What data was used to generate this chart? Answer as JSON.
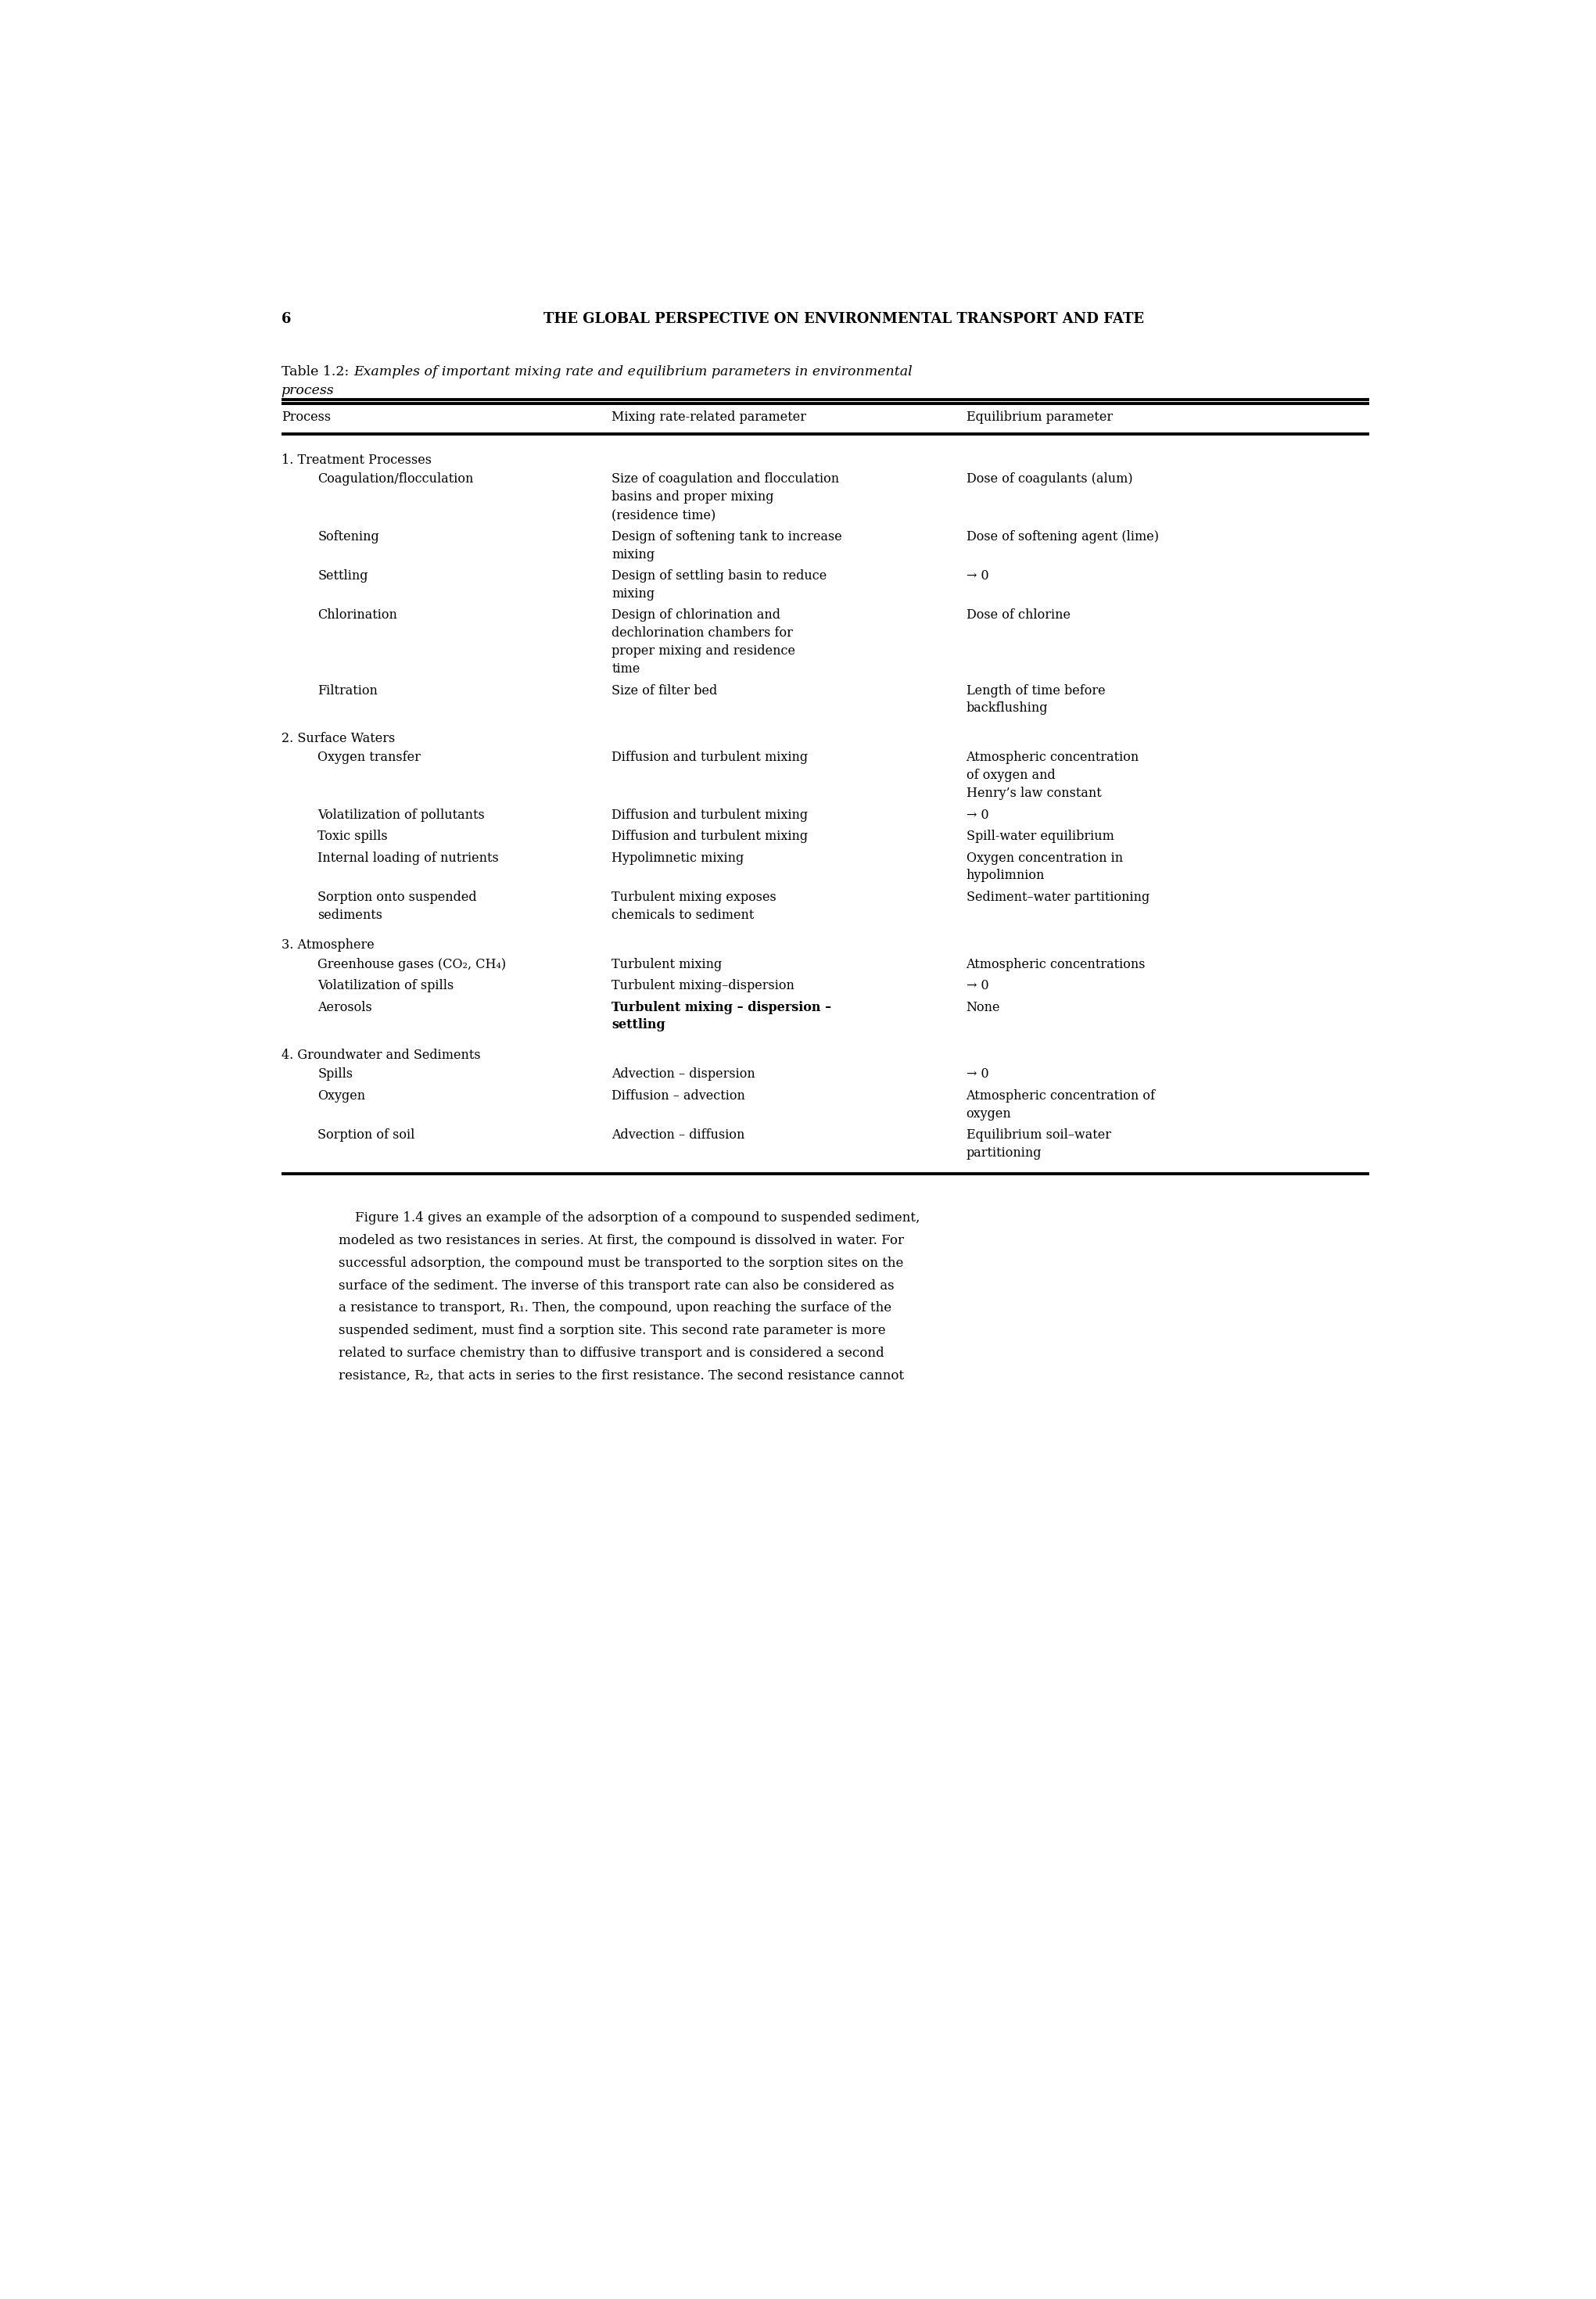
{
  "page_number": "6",
  "header": "THE GLOBAL PERSPECTIVE ON ENVIRONMENTAL TRANSPORT AND FATE",
  "table_label": "Table 1.2:",
  "table_caption_italic": "Examples of important mixing rate and equilibrium parameters in environmental\nprocess",
  "col_headers": [
    "Process",
    "Mixing rate-related parameter",
    "Equilibrium parameter"
  ],
  "rows": [
    {
      "section": true,
      "col0": "1. Treatment Processes",
      "col1": "",
      "col2": ""
    },
    {
      "section": false,
      "col0": "Coagulation/flocculation",
      "col1": "Size of coagulation and flocculation\nbasins and proper mixing\n(residence time)",
      "col2": "Dose of coagulants (alum)"
    },
    {
      "section": false,
      "col0": "Softening",
      "col1": "Design of softening tank to increase\nmixing",
      "col2": "Dose of softening agent (lime)"
    },
    {
      "section": false,
      "col0": "Settling",
      "col1": "Design of settling basin to reduce\nmixing",
      "col2": "→ 0"
    },
    {
      "section": false,
      "col0": "Chlorination",
      "col1": "Design of chlorination and\ndechlorination chambers for\nproper mixing and residence\ntime",
      "col2": "Dose of chlorine"
    },
    {
      "section": false,
      "col0": "Filtration",
      "col1": "Size of filter bed",
      "col2": "Length of time before\nbackflushing"
    },
    {
      "section": true,
      "col0": "2. Surface Waters",
      "col1": "",
      "col2": ""
    },
    {
      "section": false,
      "col0": "Oxygen transfer",
      "col1": "Diffusion and turbulent mixing",
      "col2": "Atmospheric concentration\nof oxygen and\nHenry’s law constant"
    },
    {
      "section": false,
      "col0": "Volatilization of pollutants",
      "col1": "Diffusion and turbulent mixing",
      "col2": "→ 0"
    },
    {
      "section": false,
      "col0": "Toxic spills",
      "col1": "Diffusion and turbulent mixing",
      "col2": "Spill-water equilibrium"
    },
    {
      "section": false,
      "col0": "Internal loading of nutrients",
      "col1": "Hypolimnetic mixing",
      "col2": "Oxygen concentration in\nhypolimnion"
    },
    {
      "section": false,
      "col0": "Sorption onto suspended\nsediments",
      "col1": "Turbulent mixing exposes\nchemicals to sediment",
      "col2": "Sediment–water partitioning"
    },
    {
      "section": true,
      "col0": "3. Atmosphere",
      "col1": "",
      "col2": ""
    },
    {
      "section": false,
      "col0": "Greenhouse gases (CO₂, CH₄)",
      "col1": "Turbulent mixing",
      "col2": "Atmospheric concentrations"
    },
    {
      "section": false,
      "col0": "Volatilization of spills",
      "col1": "Turbulent mixing–dispersion",
      "col2": "→ 0"
    },
    {
      "section": false,
      "col0": "Aerosols",
      "col1": "Turbulent mixing – dispersion –\nsettling",
      "col2": "None",
      "bold_col1": true
    },
    {
      "section": true,
      "col0": "4. Groundwater and Sediments",
      "col1": "",
      "col2": ""
    },
    {
      "section": false,
      "col0": "Spills",
      "col1": "Advection – dispersion",
      "col2": "→ 0"
    },
    {
      "section": false,
      "col0": "Oxygen",
      "col1": "Diffusion – advection",
      "col2": "Atmospheric concentration of\noxygen"
    },
    {
      "section": false,
      "col0": "Sorption of soil",
      "col1": "Advection – diffusion",
      "col2": "Equilibrium soil–water\npartitioning"
    }
  ],
  "footer_lines": [
    "    Figure 1.4 gives an example of the adsorption of a compound to suspended sediment,",
    "modeled as two resistances in series. At first, the compound is dissolved in water. For",
    "successful adsorption, the compound must be transported to the sorption sites on the",
    "surface of the sediment. The inverse of this transport rate can also be considered as",
    "a resistance to transport, R₁. Then, the compound, upon reaching the surface of the",
    "suspended sediment, must find a sorption site. This second rate parameter is more",
    "related to surface chemistry than to diffusive transport and is considered a second",
    "resistance, R₂, that acts in series to the first resistance. The second resistance cannot"
  ],
  "background_color": "#ffffff",
  "text_color": "#000000"
}
